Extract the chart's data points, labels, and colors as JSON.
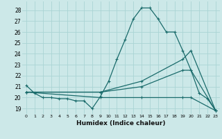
{
  "xlabel": "Humidex (Indice chaleur)",
  "bg_color": "#cce8e8",
  "grid_color": "#aad4d4",
  "line_color": "#1a6b6b",
  "xlim": [
    -0.5,
    23.5
  ],
  "ylim": [
    18.5,
    28.8
  ],
  "yticks": [
    19,
    20,
    21,
    22,
    23,
    24,
    25,
    26,
    27,
    28
  ],
  "xticks": [
    0,
    1,
    2,
    3,
    4,
    5,
    6,
    7,
    8,
    9,
    10,
    11,
    12,
    13,
    14,
    15,
    16,
    17,
    18,
    19,
    20,
    21,
    22,
    23
  ],
  "series": [
    {
      "x": [
        0,
        1,
        2,
        3,
        4,
        5,
        6,
        7,
        8,
        9,
        10,
        11,
        12,
        13,
        14,
        15,
        16,
        17,
        18,
        19,
        20,
        21,
        22,
        23
      ],
      "y": [
        21.1,
        20.4,
        20.0,
        20.0,
        19.9,
        19.9,
        19.7,
        19.7,
        19.0,
        20.1,
        21.5,
        23.5,
        25.3,
        27.2,
        28.2,
        28.2,
        27.2,
        26.0,
        26.0,
        24.3,
        22.5,
        20.4,
        19.9,
        18.8
      ]
    },
    {
      "x": [
        0,
        9,
        14,
        19,
        20,
        23
      ],
      "y": [
        20.5,
        20.5,
        21.5,
        23.5,
        24.3,
        18.8
      ]
    },
    {
      "x": [
        0,
        9,
        14,
        19,
        20,
        23
      ],
      "y": [
        20.5,
        20.5,
        21.0,
        22.5,
        22.5,
        18.8
      ]
    },
    {
      "x": [
        0,
        9,
        14,
        19,
        20,
        23
      ],
      "y": [
        20.5,
        20.0,
        20.0,
        20.0,
        20.0,
        18.8
      ]
    }
  ]
}
